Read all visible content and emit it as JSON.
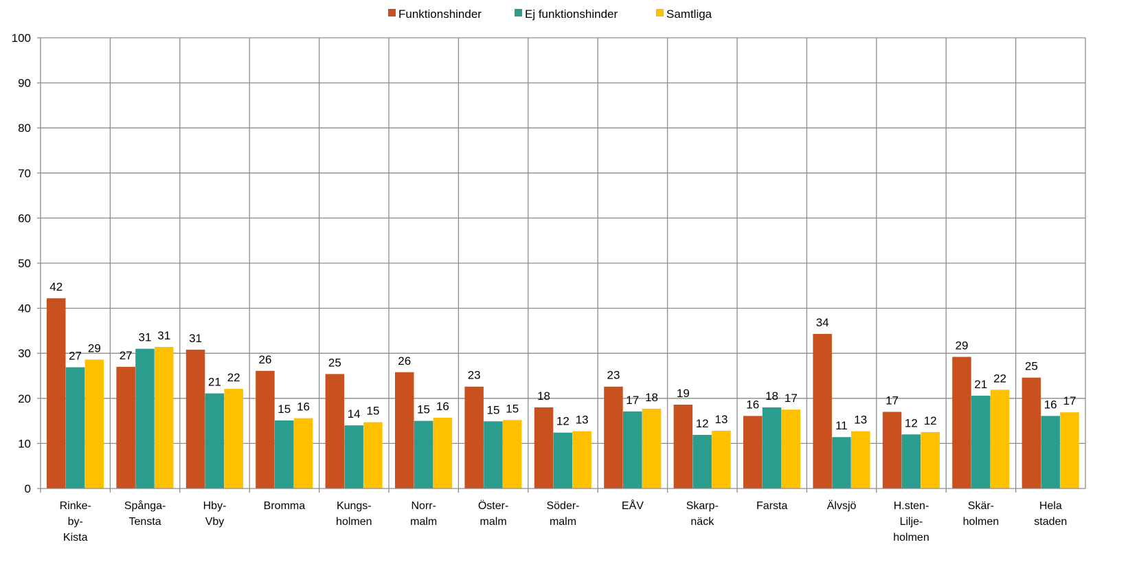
{
  "chart_data": {
    "type": "bar",
    "categories": [
      [
        "Rinke-",
        "by-",
        "Kista"
      ],
      [
        "Spånga-",
        "Tensta"
      ],
      [
        "Hby-",
        "Vby"
      ],
      [
        "Bromma"
      ],
      [
        "Kungs-",
        "holmen"
      ],
      [
        "Norr-",
        "malm"
      ],
      [
        "Öster-",
        "malm"
      ],
      [
        "Söder-",
        "malm"
      ],
      [
        "EÅV"
      ],
      [
        "Skarp-",
        "näck"
      ],
      [
        "Farsta"
      ],
      [
        "Älvsjö"
      ],
      [
        "H.sten-",
        "Lilje-",
        "holmen"
      ],
      [
        "Skär-",
        "holmen"
      ],
      [
        "Hela",
        "staden"
      ]
    ],
    "series": [
      {
        "name": "Funktionshinder",
        "color": "#C9511F",
        "values": [
          42.2,
          27.0,
          30.8,
          26.1,
          25.4,
          25.8,
          22.6,
          18.0,
          22.6,
          18.6,
          16.1,
          34.3,
          17.0,
          29.2,
          24.6
        ],
        "labels": [
          "42",
          "27",
          "31",
          "26",
          "25",
          "26",
          "23",
          "18",
          "23",
          "19",
          "16",
          "34",
          "17",
          "29",
          "25"
        ]
      },
      {
        "name": "Ej funktionshinder",
        "color": "#2A9D8F",
        "values": [
          26.9,
          31.0,
          21.1,
          15.1,
          14.0,
          15.0,
          14.9,
          12.4,
          17.1,
          11.9,
          18.0,
          11.4,
          12.0,
          20.6,
          16.1
        ],
        "labels": [
          "27",
          "31",
          "21",
          "15",
          "14",
          "15",
          "15",
          "12",
          "17",
          "12",
          "18",
          "11",
          "12",
          "21",
          "16"
        ]
      },
      {
        "name": "Samtliga",
        "color": "#FFC000",
        "values": [
          28.6,
          31.4,
          22.1,
          15.6,
          14.7,
          15.7,
          15.2,
          12.7,
          17.7,
          12.8,
          17.5,
          12.7,
          12.5,
          21.9,
          16.9
        ],
        "labels": [
          "29",
          "31",
          "22",
          "16",
          "15",
          "16",
          "15",
          "13",
          "18",
          "13",
          "17",
          "13",
          "12",
          "22",
          "17"
        ]
      }
    ],
    "ylim": [
      0,
      100
    ],
    "yticks": [
      0,
      10,
      20,
      30,
      40,
      50,
      60,
      70,
      80,
      90,
      100
    ],
    "grid": true,
    "legend_position": "top-center"
  }
}
